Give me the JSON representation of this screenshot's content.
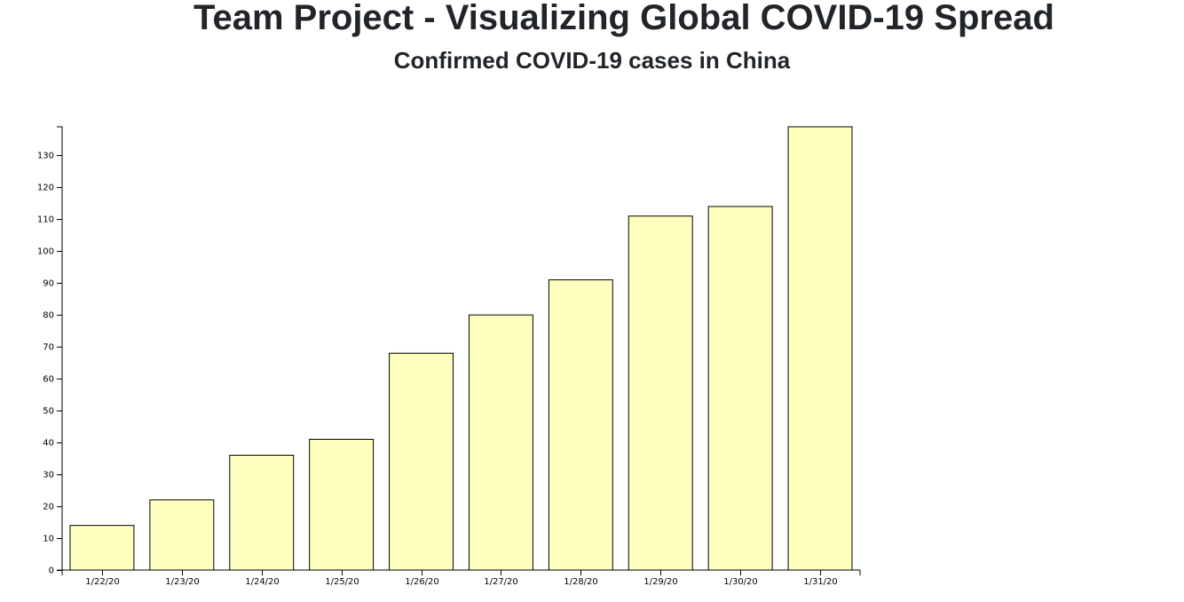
{
  "header": {
    "title": "Team Project - Visualizing Global COVID-19 Spread"
  },
  "chart_data": {
    "type": "bar",
    "title": "Confirmed COVID-19 cases in China",
    "xlabel": "",
    "ylabel": "",
    "categories": [
      "1/22/20",
      "1/23/20",
      "1/24/20",
      "1/25/20",
      "1/26/20",
      "1/27/20",
      "1/28/20",
      "1/29/20",
      "1/30/20",
      "1/31/20"
    ],
    "values": [
      14,
      22,
      36,
      41,
      68,
      80,
      91,
      111,
      114,
      139
    ],
    "ylim": [
      0,
      139
    ],
    "yticks": [
      0,
      10,
      20,
      30,
      40,
      50,
      60,
      70,
      80,
      90,
      100,
      110,
      120,
      130
    ],
    "bar_color": "#ffffc0",
    "bar_stroke": "#000000",
    "grid": false,
    "legend": "none"
  }
}
